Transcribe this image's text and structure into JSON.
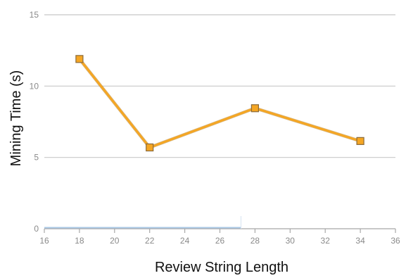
{
  "chart_data": {
    "type": "line",
    "title": "",
    "xlabel": "Review String Length",
    "ylabel": "Mining Time (s)",
    "xlim": [
      16,
      36
    ],
    "ylim": [
      0,
      15
    ],
    "x_ticks": [
      16,
      18,
      20,
      22,
      24,
      26,
      28,
      30,
      32,
      34,
      36
    ],
    "y_ticks": [
      0,
      5,
      10,
      15
    ],
    "grid": "horizontal",
    "legend": "none",
    "series": [
      {
        "color": "#F5A623",
        "x": [
          18,
          22,
          28,
          34
        ],
        "y": [
          11.9,
          5.7,
          8.45,
          6.15
        ]
      }
    ]
  }
}
